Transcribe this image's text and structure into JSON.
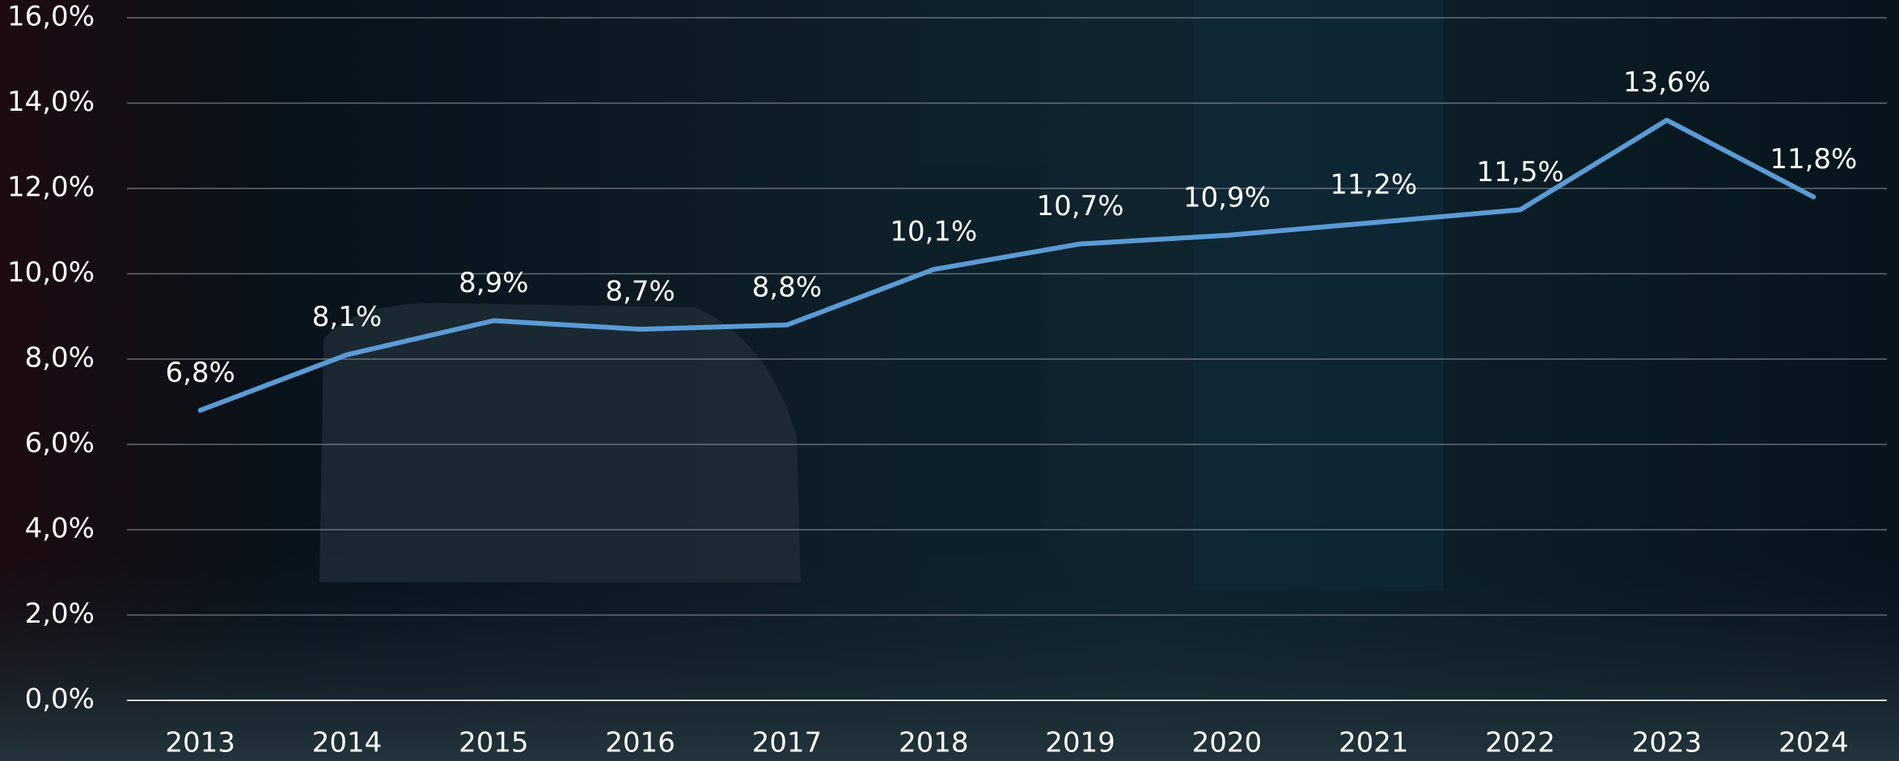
{
  "chart_data": {
    "type": "line",
    "categories": [
      "2013",
      "2014",
      "2015",
      "2016",
      "2017",
      "2018",
      "2019",
      "2020",
      "2021",
      "2022",
      "2023",
      "2024"
    ],
    "series": [
      {
        "color": "#5b9bd5",
        "values": [
          6.8,
          8.1,
          8.9,
          8.7,
          8.8,
          10.1,
          10.7,
          10.9,
          11.2,
          11.5,
          13.6,
          11.8
        ],
        "value_labels": [
          "6,8%",
          "8,1%",
          "8,9%",
          "8,7%",
          "8,8%",
          "10,1%",
          "10,7%",
          "10,9%",
          "11,2%",
          "11,5%",
          "13,6%",
          "11,8%"
        ]
      }
    ],
    "ylim": [
      0,
      16
    ],
    "yticks": [
      {
        "value": 0,
        "label": "0,0%"
      },
      {
        "value": 2,
        "label": "2,0%"
      },
      {
        "value": 4,
        "label": "4,0%"
      },
      {
        "value": 6,
        "label": "6,0%"
      },
      {
        "value": 8,
        "label": "8,0%"
      },
      {
        "value": 10,
        "label": "10,0%"
      },
      {
        "value": 12,
        "label": "12,0%"
      },
      {
        "value": 14,
        "label": "14,0%"
      },
      {
        "value": 16,
        "label": "16,0%"
      }
    ],
    "grid": true
  }
}
